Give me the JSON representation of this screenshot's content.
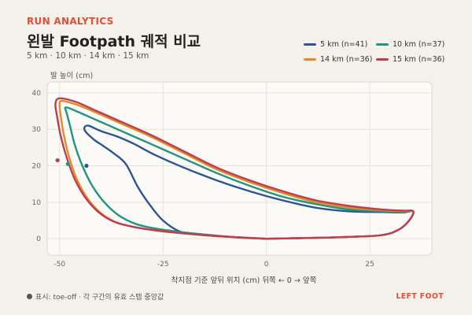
{
  "header": {
    "kicker": "RUN ANALYTICS",
    "title": "왼발 Footpath 궤적 비교",
    "subtitle": "5 km · 10 km · 14 km · 15 km"
  },
  "legend": [
    {
      "label": "5 km  (n=41)",
      "color": "#2c5596"
    },
    {
      "label": "10 km  (n=37)",
      "color": "#1f9580"
    },
    {
      "label": "14 km  (n=36)",
      "color": "#e08d26"
    },
    {
      "label": "15 km  (n=36)",
      "color": "#bf3c55"
    }
  ],
  "footer": {
    "note": "표시: toe-off · 각 구간의 유효 스텝 중앙값",
    "brand": "LEFT FOOT"
  },
  "chart_data": {
    "type": "line",
    "xlabel": "착지점 기준 앞뒤 위치 (cm)    뒤쪽 ← 0 → 앞쪽",
    "ylabel": "발 높이 (cm)",
    "xlim": [
      -53,
      40
    ],
    "ylim": [
      -4.5,
      43
    ],
    "xticks": [
      -50,
      -25,
      0,
      25
    ],
    "yticks": [
      0,
      10,
      20,
      30,
      40
    ],
    "grid": true,
    "series": [
      {
        "name": "5 km  (n=41)",
        "color": "#2c5596",
        "toe_off": [
          -43.5,
          20
        ],
        "x": [
          0,
          10,
          20,
          28,
          32,
          34.5,
          35.5,
          33,
          28,
          20,
          12,
          4,
          -4,
          -12,
          -20,
          -27,
          -32,
          -36,
          -40,
          -43,
          -44,
          -43.8,
          -43,
          -41.5,
          -39.5,
          -37,
          -34,
          -31,
          -28,
          -25,
          -21,
          -17,
          -13,
          -9,
          -5,
          0
        ],
        "y": [
          0,
          0.2,
          0.5,
          1,
          2.5,
          5,
          7.5,
          7.2,
          7.3,
          7.5,
          8.5,
          10.5,
          13,
          16,
          19.5,
          23,
          26,
          28,
          29.5,
          31,
          30.5,
          29.5,
          28.5,
          27,
          25.5,
          23.5,
          20.5,
          14,
          9,
          5,
          2,
          1.2,
          0.8,
          0.5,
          0.2,
          0
        ]
      },
      {
        "name": "10 km  (n=37)",
        "color": "#1f9580",
        "toe_off": [
          -48,
          20.5
        ],
        "x": [
          0,
          10,
          20,
          28,
          32,
          34.5,
          35.5,
          33,
          28,
          20,
          12,
          4,
          -4,
          -12,
          -20,
          -28,
          -36,
          -42,
          -46,
          -48.5,
          -48.3,
          -47.6,
          -46.4,
          -44.5,
          -42.1,
          -39.2,
          -35.8,
          -31.9,
          -27.4,
          -22.5,
          -17.1,
          -11.5,
          -5.7,
          0
        ],
        "y": [
          0,
          0.2,
          0.5,
          1,
          2.5,
          5,
          7.5,
          7.3,
          7.5,
          8,
          9.5,
          11.5,
          14.5,
          18,
          22,
          26,
          30,
          33,
          35,
          36,
          34.5,
          31.5,
          26,
          20,
          14.5,
          10,
          6.5,
          4.2,
          2.9,
          2.1,
          1.4,
          0.8,
          0.3,
          0
        ]
      },
      {
        "name": "14 km  (n=36)",
        "color": "#e08d26",
        "x": [
          0,
          10,
          20,
          28,
          32,
          34.5,
          35.5,
          33,
          28,
          20,
          12,
          4,
          -4,
          -12,
          -20,
          -28,
          -36,
          -42,
          -46,
          -49.5,
          -50,
          -49.7,
          -48.9,
          -47.6,
          -45.7,
          -43.2,
          -40,
          -36.3,
          -31.9,
          -26.9,
          -21.4,
          -15.5,
          -9.1,
          -2.4,
          0
        ],
        "y": [
          0,
          0.2,
          0.5,
          1,
          2.5,
          5,
          7.5,
          7.5,
          7.8,
          8.5,
          10,
          12.5,
          15.5,
          19,
          23.5,
          28,
          32,
          35,
          36.8,
          37.8,
          36.5,
          33.5,
          28,
          22,
          16,
          11,
          7,
          4.5,
          3.2,
          2.3,
          1.6,
          1,
          0.5,
          0.1,
          0
        ]
      },
      {
        "name": "15 km  (n=36)",
        "color": "#bf3c55",
        "toe_off": [
          -50.5,
          21.5
        ],
        "x": [
          0,
          10,
          20,
          28,
          32,
          34.5,
          35.5,
          33,
          28,
          20,
          12,
          4,
          -4,
          -12,
          -20,
          -28,
          -36,
          -42,
          -46,
          -50,
          -51,
          -50.6,
          -49.7,
          -48.2,
          -46.2,
          -43.6,
          -40.3,
          -36.5,
          -32,
          -26.9,
          -21.3,
          -15.2,
          -8.6,
          -1.6,
          0
        ],
        "y": [
          0,
          0.2,
          0.5,
          1,
          2.5,
          5,
          7.5,
          7.7,
          8,
          9,
          10.5,
          13,
          16,
          19.5,
          24,
          28.5,
          32.5,
          35.5,
          37.5,
          38.5,
          37,
          33.5,
          28,
          22,
          16,
          11,
          7,
          4.5,
          3.2,
          2.3,
          1.6,
          1,
          0.5,
          0.1,
          0
        ]
      }
    ]
  }
}
